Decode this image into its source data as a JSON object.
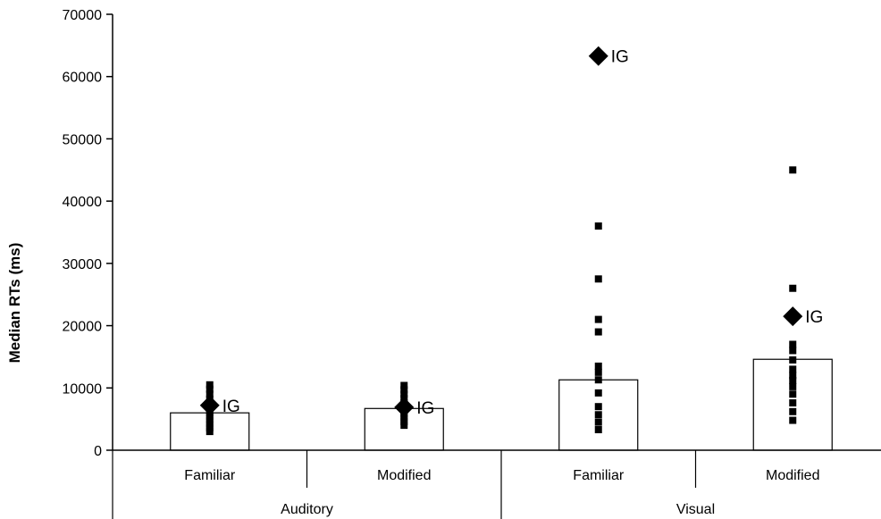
{
  "chart_data": {
    "type": "bar",
    "ylabel": "Median RTs (ms)",
    "xlabel": "",
    "ylim": [
      0,
      70000
    ],
    "yticks": [
      0,
      10000,
      20000,
      30000,
      40000,
      50000,
      60000,
      70000
    ],
    "grid": false,
    "groups": [
      {
        "label": "Auditory",
        "categories": [
          "Familiar",
          "Modified"
        ]
      },
      {
        "label": "Visual",
        "categories": [
          "Familiar",
          "Modified"
        ]
      }
    ],
    "categories": [
      "Familiar",
      "Modified",
      "Familiar",
      "Modified"
    ],
    "series": [
      {
        "type": "bar",
        "values": [
          6000,
          6700,
          11300,
          14600
        ]
      }
    ],
    "individual_points": [
      [
        3000,
        3600,
        4200,
        4800,
        5400,
        6000,
        6700,
        7400,
        8200,
        9000,
        9800,
        10500
      ],
      [
        4000,
        4600,
        5200,
        5800,
        6400,
        7000,
        7600,
        8300,
        9000,
        9700,
        10400
      ],
      [
        3300,
        4500,
        5700,
        7000,
        9200,
        11300,
        12500,
        13500,
        19000,
        21000,
        27500,
        36000
      ],
      [
        4800,
        6200,
        7600,
        9000,
        10200,
        11200,
        12000,
        13000,
        14500,
        16000,
        17000,
        26000,
        45000
      ]
    ],
    "highlight": {
      "label": "IG",
      "values": [
        7200,
        6900,
        63300,
        21500
      ]
    }
  }
}
